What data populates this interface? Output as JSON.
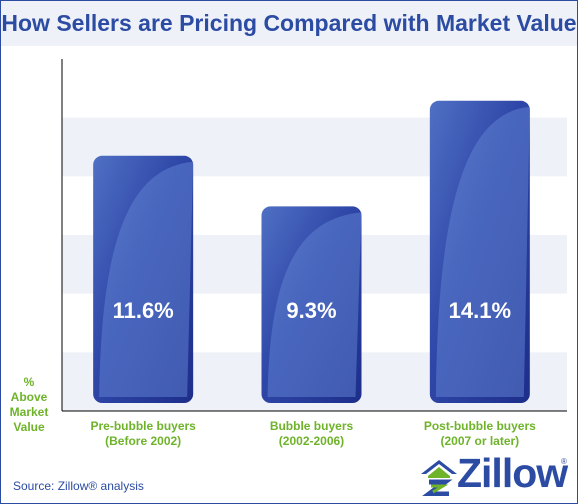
{
  "title": "How Sellers are Pricing Compared with Market Value",
  "source": "Source: Zillow® analysis",
  "logo": {
    "text": "Zillow",
    "registered": "®"
  },
  "chart_data": {
    "type": "bar",
    "title": "How Sellers are Pricing Compared with Market Value",
    "categories": [
      [
        "Pre-bubble buyers",
        "(Before 2002)"
      ],
      [
        "Bubble buyers",
        "(2002-2006)"
      ],
      [
        "Post-bubble buyers",
        "(2007 or later)"
      ]
    ],
    "values": [
      11.6,
      9.3,
      14.1
    ],
    "value_labels": [
      "11.6%",
      "9.3%",
      "14.1%"
    ],
    "ylabel": [
      "%",
      "Above",
      "Market",
      "Value"
    ],
    "xlabel": "",
    "ylim": [
      0,
      16
    ],
    "grid": true,
    "colors": {
      "bar_dark": "#22348f",
      "bar_light": "#4f70c4",
      "axis_label": "#6eb32a",
      "title": "#2c4ba3",
      "grid_band": "#eef1f8"
    }
  }
}
